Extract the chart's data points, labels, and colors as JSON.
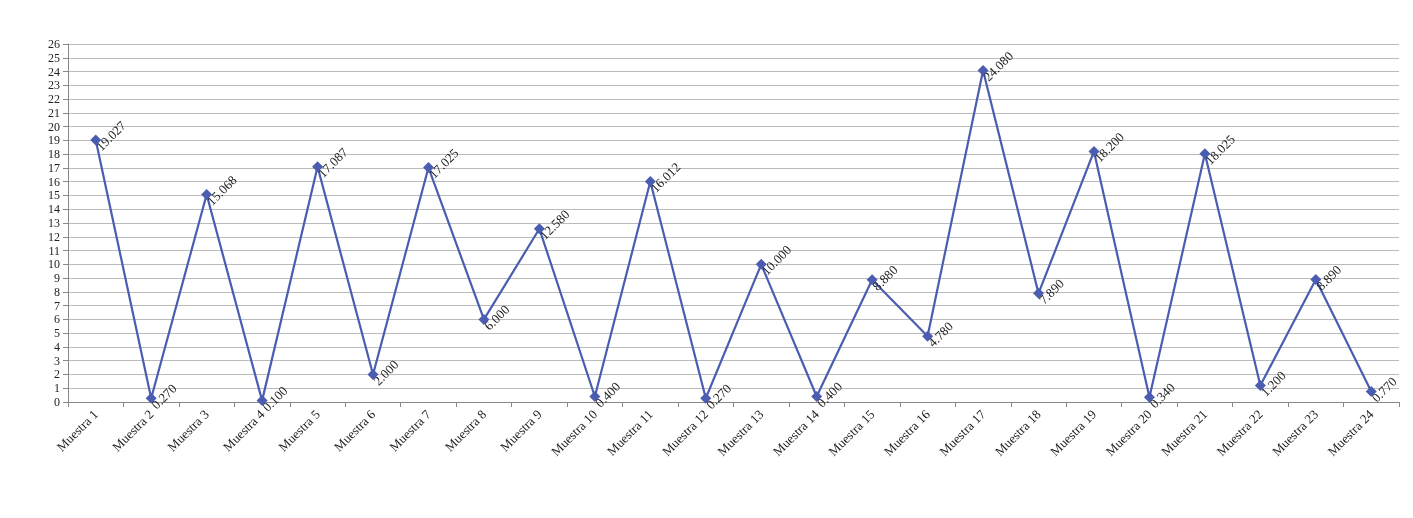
{
  "chart_data": {
    "type": "line",
    "categories": [
      "Muestra 1",
      "Muestra 2",
      "Muestra 3",
      "Muestra 4",
      "Muestra 5",
      "Muestra 6",
      "Muestra 7",
      "Muestra 8",
      "Muestra 9",
      "Muestra 10",
      "Muestra 11",
      "Muestra 12",
      "Muestra 13",
      "Muestra 14",
      "Muestra 15",
      "Muestra 16",
      "Muestra 17",
      "Muestra 18",
      "Muestra 19",
      "Muestra 20",
      "Muestra 21",
      "Muestra 22",
      "Muestra 23",
      "Muestra 24"
    ],
    "series": [
      {
        "color": "#4a5db0",
        "values": [
          19.027,
          0.27,
          15.068,
          0.1,
          17.087,
          2.0,
          17.025,
          6.0,
          12.58,
          0.4,
          16.012,
          0.27,
          10.0,
          0.4,
          8.88,
          4.78,
          24.08,
          7.89,
          18.2,
          0.34,
          18.025,
          1.2,
          8.89,
          0.77
        ],
        "value_labels": [
          "19.027",
          "0.270",
          "15.068",
          "0.100",
          "17.087",
          "2.000",
          "17.025",
          "6.000",
          "12.580",
          "0.400",
          "16.012",
          "0.270",
          "10.000",
          "0.400",
          "8.880",
          "4.780",
          "24.080",
          "7.890",
          "18.200",
          "0.340",
          "18.025",
          "1.200",
          "8.890",
          "0.770"
        ]
      }
    ],
    "ylim": [
      0,
      26
    ],
    "yticks": [
      0,
      1,
      2,
      3,
      4,
      5,
      6,
      7,
      8,
      9,
      10,
      11,
      12,
      13,
      14,
      15,
      16,
      17,
      18,
      19,
      20,
      21,
      22,
      23,
      24,
      25,
      26
    ],
    "grid": "y",
    "marker": "diamond",
    "line_style": "solid"
  }
}
